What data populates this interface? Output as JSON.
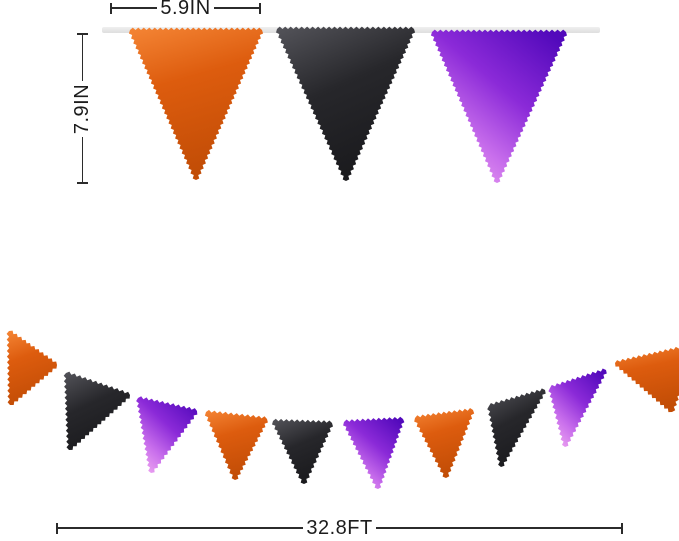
{
  "dimensions": {
    "pennant_width_label": "5.9IN",
    "pennant_height_label": "7.9IN",
    "banner_length_label": "32.8FT"
  },
  "colors": {
    "orange": "#dd5c0e",
    "orange_light": "#f48434",
    "orange_dark": "#c24d06",
    "black": "#1a1a1d",
    "black_sheen": "#515157",
    "purple": "#5209bb",
    "purple_mid": "#8b2ad8",
    "purple_light": "#f2abf1",
    "string": "#e6e6e6",
    "dimension_line": "#2b2b2b"
  },
  "top_pennants": [
    "orange",
    "black",
    "purple"
  ],
  "garland_pennants": [
    "orange",
    "black",
    "purple",
    "orange",
    "black",
    "purple",
    "orange",
    "black",
    "purple",
    "orange"
  ]
}
